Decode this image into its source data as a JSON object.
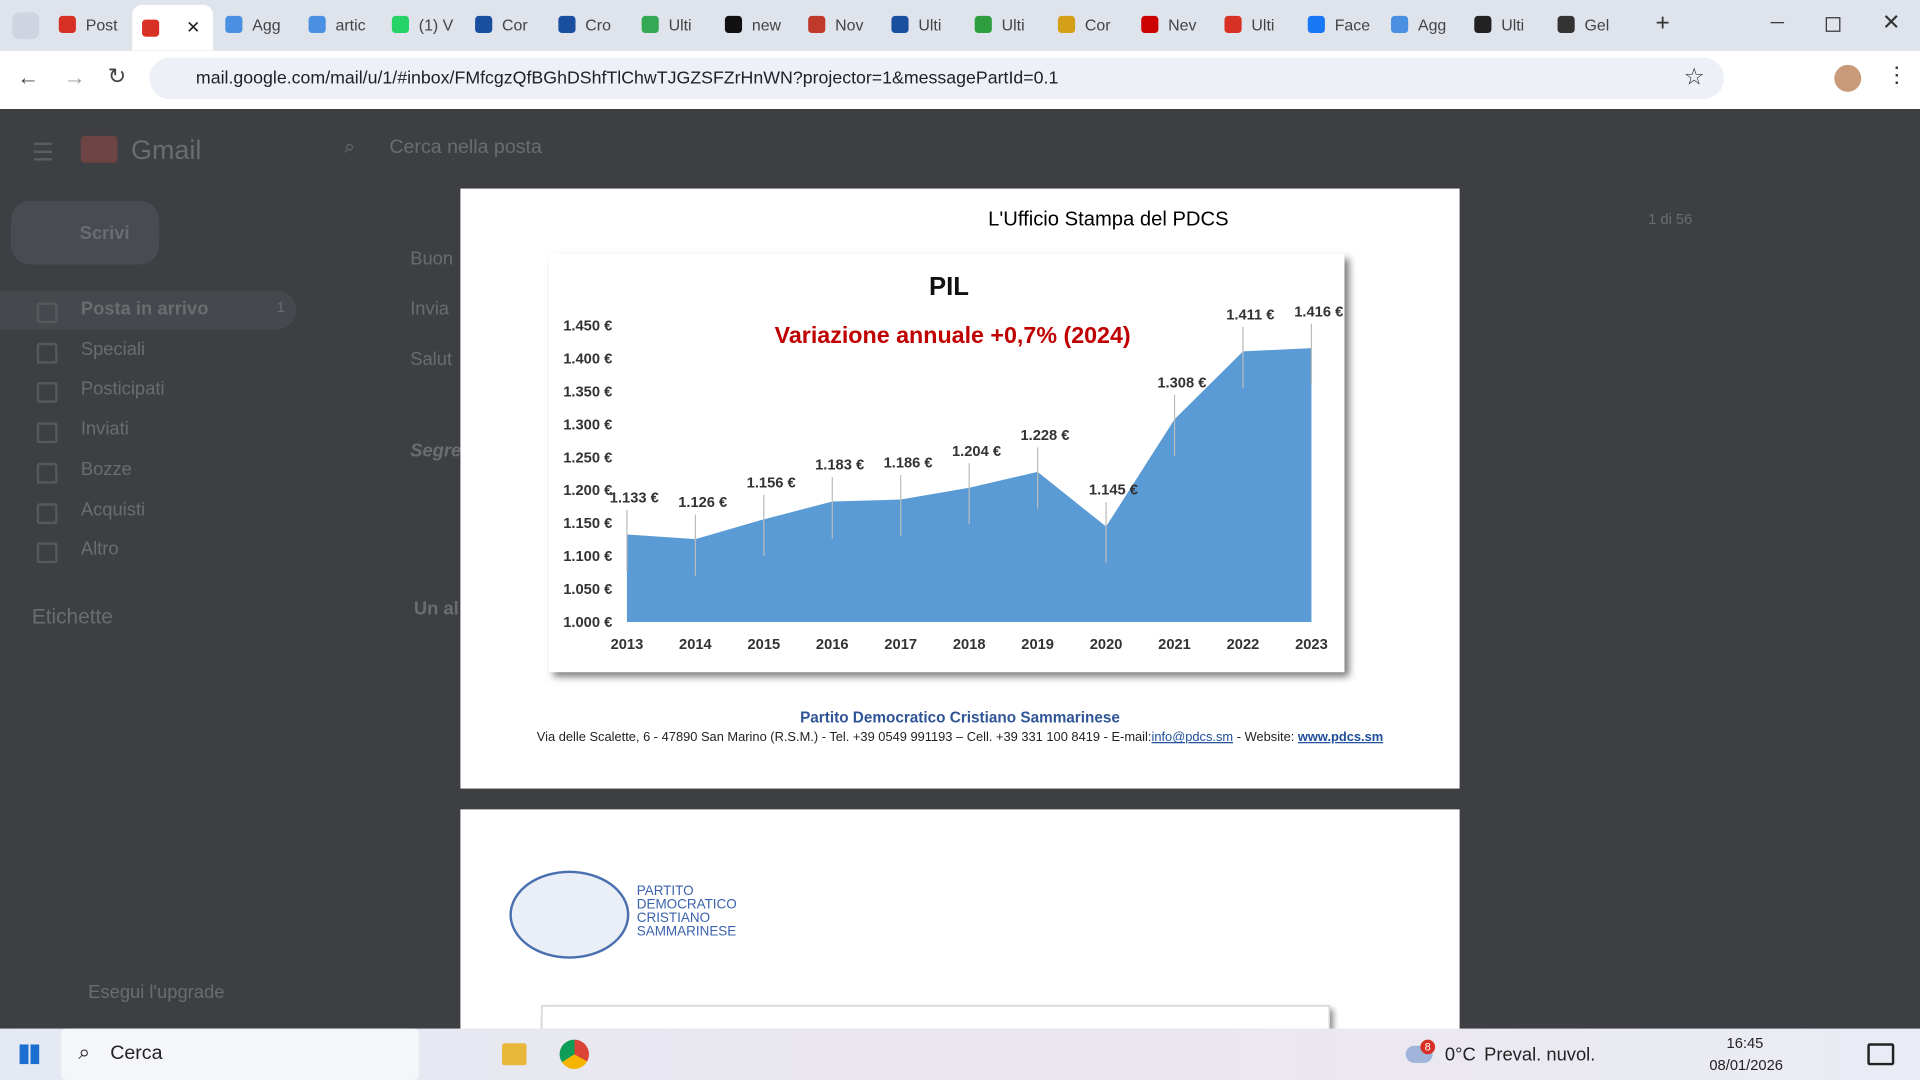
{
  "browser": {
    "tabs": [
      "Post",
      "Agg",
      "artic",
      "(1) V",
      "Cor",
      "Cro",
      "Ulti",
      "new",
      "Nov",
      "Ulti",
      "Ulti",
      "Cor",
      "Nev",
      "Ulti",
      "Face",
      "Agg",
      "Ulti",
      "Gel"
    ],
    "url": "mail.google.com/mail/u/1/#inbox/FMfcgzQfBGhDShfTlChwTJGZSFZrHnWN?projector=1&messagePartId=0.1"
  },
  "gmail": {
    "logo": "Gmail",
    "search": "Cerca nella posta",
    "compose": "Scrivi",
    "nav": [
      "Posta in arrivo",
      "Speciali",
      "Posticipati",
      "Inviati",
      "Bozze",
      "Acquisti",
      "Altro"
    ],
    "inbox_count": "1",
    "labels_heading": "Etichette",
    "upgrade": "Esegui l'upgrade",
    "counter": "1 di 56",
    "snippets": [
      "Buon",
      "Invia",
      "Salut",
      "Segre",
      "Un al"
    ]
  },
  "document": {
    "header": "L'Ufficio Stampa del PDCS",
    "footer": {
      "org": "Partito Democratico Cristiano Sammarinese",
      "address": "Via delle Scalette, 6 - 47890 San Marino (R.S.M.) - Tel. +39 0549 991193 – Cell. +39 331 100 8419 - E-mail:",
      "email": "info@pdcs.sm",
      "website_label": " - Website: ",
      "website": "www.pdcs.sm"
    },
    "logo_lines": [
      "PARTITO",
      "DEMOCRATICO",
      "CRISTIANO",
      "SAMMARINESE"
    ]
  },
  "chart_data": {
    "type": "area",
    "title": "PIL",
    "subtitle": "Variazione annuale +0,7% (2024)",
    "categories": [
      "2013",
      "2014",
      "2015",
      "2016",
      "2017",
      "2018",
      "2019",
      "2020",
      "2021",
      "2022",
      "2023"
    ],
    "values": [
      1133,
      1126,
      1156,
      1183,
      1186,
      1204,
      1228,
      1145,
      1308,
      1411,
      1416
    ],
    "value_labels": [
      "1.133 €",
      "1.126 €",
      "1.156 €",
      "1.183 €",
      "1.186 €",
      "1.204 €",
      "1.228 €",
      "1.145 €",
      "1.308 €",
      "1.411 €",
      "1.416 €"
    ],
    "color": "#5b9bd5",
    "ylim": [
      1000,
      1450
    ],
    "yticks": [
      {
        "value": 1000,
        "label": "1.000 €"
      },
      {
        "value": 1050,
        "label": "1.050 €"
      },
      {
        "value": 1100,
        "label": "1.100 €"
      },
      {
        "value": 1150,
        "label": "1.150 €"
      },
      {
        "value": 1200,
        "label": "1.200 €"
      },
      {
        "value": 1250,
        "label": "1.250 €"
      },
      {
        "value": 1300,
        "label": "1.300 €"
      },
      {
        "value": 1350,
        "label": "1.350 €"
      },
      {
        "value": 1400,
        "label": "1.400 €"
      },
      {
        "value": 1450,
        "label": "1.450 €"
      }
    ]
  },
  "taskbar": {
    "search": "Cerca",
    "weather_badge": "8",
    "temperature": "0°C",
    "weather": "Preval. nuvol.",
    "time": "16:45",
    "date": "08/01/2026"
  }
}
